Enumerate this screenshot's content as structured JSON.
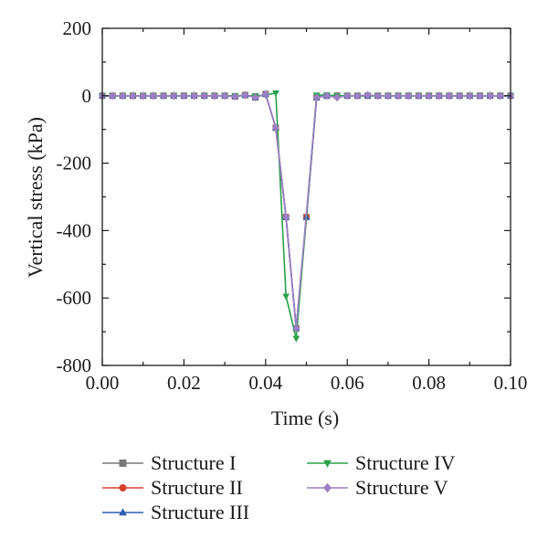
{
  "chart_data": {
    "type": "line",
    "title": "",
    "xlabel": "Time (s)",
    "ylabel": "Vertical stress (kPa)",
    "xlim": [
      0,
      0.1
    ],
    "ylim": [
      -800,
      200
    ],
    "xticks": [
      0.0,
      0.02,
      0.04,
      0.06,
      0.08,
      0.1
    ],
    "xtick_labels": [
      "0.00",
      "0.02",
      "0.04",
      "0.06",
      "0.08",
      "0.10"
    ],
    "yticks": [
      200,
      0,
      -200,
      -400,
      -600,
      -800
    ],
    "ytick_labels": [
      "200",
      "0",
      "-200",
      "-400",
      "-600",
      "-800"
    ],
    "grid": false,
    "legend_position": "bottom",
    "series": [
      {
        "name": "Structure I",
        "color": "#7a7a7a",
        "marker": "square",
        "x": [
          0,
          0.0025,
          0.005,
          0.0075,
          0.01,
          0.0125,
          0.015,
          0.0175,
          0.02,
          0.0225,
          0.025,
          0.0275,
          0.03,
          0.0325,
          0.035,
          0.0375,
          0.04,
          0.0425,
          0.045,
          0.0475,
          0.05,
          0.0525,
          0.055,
          0.0575,
          0.06,
          0.0625,
          0.065,
          0.0675,
          0.07,
          0.0725,
          0.075,
          0.0775,
          0.08,
          0.0825,
          0.085,
          0.0875,
          0.09,
          0.0925,
          0.095,
          0.0975,
          0.1
        ],
        "y": [
          0,
          0,
          0,
          0,
          0,
          0,
          0,
          0,
          0,
          0,
          0,
          0,
          0,
          -2,
          2,
          -5,
          5,
          -95,
          -360,
          -690,
          -360,
          -5,
          0,
          0,
          0,
          0,
          0,
          0,
          0,
          0,
          0,
          0,
          0,
          0,
          0,
          0,
          0,
          0,
          0,
          0,
          0
        ]
      },
      {
        "name": "Structure II",
        "color": "#d9402a",
        "marker": "circle",
        "x": [
          0,
          0.0025,
          0.005,
          0.0075,
          0.01,
          0.0125,
          0.015,
          0.0175,
          0.02,
          0.0225,
          0.025,
          0.0275,
          0.03,
          0.0325,
          0.035,
          0.0375,
          0.04,
          0.0425,
          0.045,
          0.0475,
          0.05,
          0.0525,
          0.055,
          0.0575,
          0.06,
          0.0625,
          0.065,
          0.0675,
          0.07,
          0.0725,
          0.075,
          0.0775,
          0.08,
          0.0825,
          0.085,
          0.0875,
          0.09,
          0.0925,
          0.095,
          0.0975,
          0.1
        ],
        "y": [
          0,
          0,
          0,
          0,
          0,
          0,
          0,
          0,
          0,
          0,
          0,
          0,
          0,
          -2,
          2,
          -5,
          5,
          -95,
          -360,
          -690,
          -360,
          -5,
          0,
          0,
          0,
          0,
          0,
          0,
          0,
          0,
          0,
          0,
          0,
          0,
          0,
          0,
          0,
          0,
          0,
          0,
          0
        ]
      },
      {
        "name": "Structure III",
        "color": "#2f5fb3",
        "marker": "triangle-up",
        "x": [
          0,
          0.0025,
          0.005,
          0.0075,
          0.01,
          0.0125,
          0.015,
          0.0175,
          0.02,
          0.0225,
          0.025,
          0.0275,
          0.03,
          0.0325,
          0.035,
          0.0375,
          0.04,
          0.0425,
          0.045,
          0.0475,
          0.05,
          0.0525,
          0.055,
          0.0575,
          0.06,
          0.0625,
          0.065,
          0.0675,
          0.07,
          0.0725,
          0.075,
          0.0775,
          0.08,
          0.0825,
          0.085,
          0.0875,
          0.09,
          0.0925,
          0.095,
          0.0975,
          0.1
        ],
        "y": [
          0,
          0,
          0,
          0,
          0,
          0,
          0,
          0,
          0,
          0,
          0,
          0,
          0,
          -2,
          2,
          -5,
          5,
          -95,
          -360,
          -690,
          -360,
          -5,
          0,
          0,
          0,
          0,
          0,
          0,
          0,
          0,
          0,
          0,
          0,
          0,
          0,
          0,
          0,
          0,
          0,
          0,
          0
        ]
      },
      {
        "name": "Structure IV",
        "color": "#2aa04a",
        "marker": "triangle-down",
        "x": [
          0,
          0.0025,
          0.005,
          0.0075,
          0.01,
          0.0125,
          0.015,
          0.0175,
          0.02,
          0.0225,
          0.025,
          0.0275,
          0.03,
          0.0325,
          0.035,
          0.0375,
          0.04,
          0.0425,
          0.045,
          0.0475,
          0.0525,
          0.055,
          0.0575,
          0.06,
          0.0625,
          0.065,
          0.0675,
          0.07,
          0.0725,
          0.075,
          0.0775,
          0.08,
          0.0825,
          0.085,
          0.0875,
          0.09,
          0.0925,
          0.095,
          0.0975,
          0.1
        ],
        "y": [
          0,
          0,
          0,
          0,
          0,
          0,
          0,
          0,
          0,
          0,
          0,
          0,
          0,
          0,
          0,
          0,
          2,
          8,
          -595,
          -720,
          2,
          2,
          0,
          0,
          0,
          0,
          0,
          0,
          0,
          0,
          0,
          0,
          0,
          0,
          0,
          0,
          0,
          0,
          0,
          0
        ]
      },
      {
        "name": "Structure V",
        "color": "#9b7fc4",
        "marker": "diamond",
        "x": [
          0,
          0.0025,
          0.005,
          0.0075,
          0.01,
          0.0125,
          0.015,
          0.0175,
          0.02,
          0.0225,
          0.025,
          0.0275,
          0.03,
          0.0325,
          0.035,
          0.0375,
          0.04,
          0.0425,
          0.045,
          0.0475,
          0.0525,
          0.055,
          0.0575,
          0.06,
          0.0625,
          0.065,
          0.0675,
          0.07,
          0.0725,
          0.075,
          0.0775,
          0.08,
          0.0825,
          0.085,
          0.0875,
          0.09,
          0.0925,
          0.095,
          0.0975,
          0.1
        ],
        "y": [
          0,
          0,
          0,
          0,
          0,
          0,
          0,
          0,
          0,
          0,
          0,
          0,
          0,
          -2,
          2,
          -5,
          5,
          -95,
          -360,
          -690,
          -5,
          0,
          -5,
          0,
          0,
          2,
          0,
          0,
          0,
          0,
          0,
          0,
          0,
          0,
          0,
          0,
          0,
          0,
          0,
          0
        ]
      }
    ]
  }
}
